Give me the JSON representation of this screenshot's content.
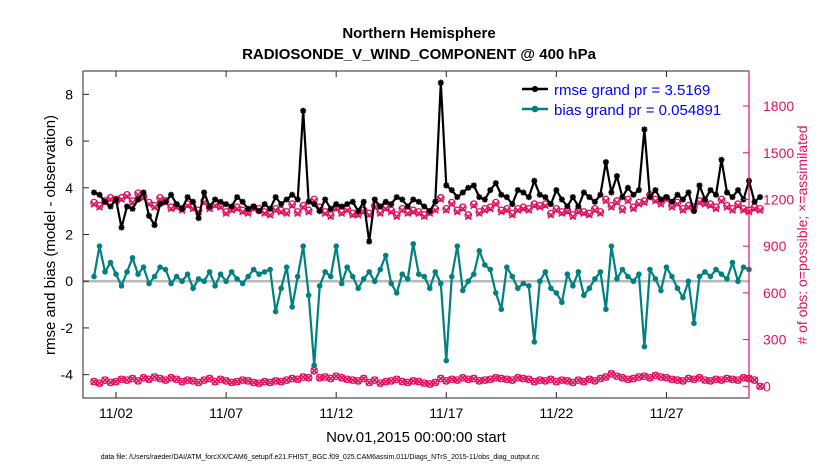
{
  "chart_data": {
    "type": "line",
    "title": "Northern Hemisphere",
    "subtitle": "RADIOSONDE_V_WIND_COMPONENT @ 400 hPa",
    "xlabel": "Nov.01,2015 00:00:00 start",
    "ylabel": "rmse and bias (model - observation)",
    "y2label": "# of obs: o=possible; ×=assimilated",
    "footnote": "data file: /Users/raeder/DAI/ATM_forcXX/CAM6_setup/f.e21.FHIST_BGC.f09_025.CAM6assim.011/Diags_NTrS_2015-11/obs_diag_output.nc",
    "xlim": [
      0.5,
      30.75
    ],
    "ylim": [
      -5,
      9
    ],
    "y2lim": [
      -75,
      2025
    ],
    "xticks": [
      {
        "day": 2,
        "label": "11/02"
      },
      {
        "day": 7,
        "label": "11/07"
      },
      {
        "day": 12,
        "label": "11/12"
      },
      {
        "day": 17,
        "label": "11/17"
      },
      {
        "day": 22,
        "label": "11/22"
      },
      {
        "day": 27,
        "label": "11/27"
      }
    ],
    "yticks": [
      -4,
      -2,
      0,
      2,
      4,
      6,
      8
    ],
    "y2ticks": [
      0,
      300,
      600,
      900,
      1200,
      1500,
      1800
    ],
    "legend_position": "top-right",
    "colors": {
      "rmse": "#000000",
      "bias": "#008080",
      "obs": "#e0115f",
      "zero": "#bbbbbb",
      "legend_text": "#0000ff"
    },
    "series": [
      {
        "key": "rmse",
        "name": "rmse grand pr = 3.5169",
        "axis": "left",
        "values": [
          3.8,
          3.7,
          3.4,
          3.2,
          3.5,
          2.3,
          3.2,
          3.1,
          3.5,
          3.8,
          2.8,
          2.4,
          3.3,
          3.4,
          3.7,
          3.3,
          3.1,
          3.6,
          3.4,
          2.7,
          3.8,
          3.2,
          3.5,
          3.4,
          3.3,
          3.2,
          3.6,
          3.4,
          3.1,
          3.2,
          3.0,
          3.3,
          3.1,
          3.6,
          3.3,
          3.5,
          3.7,
          3.5,
          7.3,
          3.4,
          3.3,
          3.0,
          3.5,
          3.1,
          3.3,
          3.2,
          3.3,
          3.4,
          3.0,
          3.4,
          1.7,
          3.5,
          3.2,
          3.4,
          3.3,
          3.6,
          3.5,
          3.2,
          3.5,
          3.4,
          3.2,
          3.0,
          3.4,
          8.5,
          4.1,
          3.9,
          3.6,
          3.8,
          4.0,
          4.1,
          3.6,
          3.5,
          3.9,
          4.2,
          3.7,
          3.6,
          3.3,
          3.9,
          3.8,
          3.6,
          4.3,
          3.7,
          3.6,
          3.3,
          3.9,
          3.5,
          3.2,
          3.6,
          3.2,
          3.8,
          3.6,
          3.4,
          3.7,
          5.1,
          3.8,
          4.5,
          3.6,
          4.0,
          3.7,
          3.9,
          6.5,
          3.6,
          3.9,
          3.5,
          3.6,
          3.4,
          3.7,
          3.5,
          3.8,
          3.0,
          4.1,
          3.5,
          3.9,
          3.7,
          5.2,
          3.8,
          3.6,
          3.9,
          3.5,
          4.3,
          3.4,
          3.6
        ]
      },
      {
        "key": "bias",
        "name": "bias grand pr = 0.054891",
        "axis": "left",
        "values": [
          0.2,
          1.5,
          0.4,
          0.8,
          0.3,
          -0.2,
          0.4,
          1.0,
          0.3,
          0.6,
          -0.1,
          0.2,
          0.6,
          0.5,
          -0.1,
          0.2,
          0.0,
          0.3,
          -0.3,
          0.1,
          0.0,
          0.4,
          -0.2,
          0.3,
          0.0,
          0.4,
          0.1,
          -0.1,
          0.2,
          0.5,
          0.3,
          0.4,
          0.5,
          -1.3,
          -0.3,
          0.6,
          -1.1,
          0.2,
          1.5,
          -0.6,
          -3.6,
          -0.2,
          0.4,
          0.2,
          1.5,
          -0.1,
          0.6,
          0.2,
          -0.3,
          0.1,
          0.4,
          0.0,
          0.5,
          1.1,
          -0.1,
          -0.5,
          0.3,
          0.1,
          1.6,
          0.3,
          0.2,
          -0.3,
          0.4,
          -0.1,
          -3.4,
          0.2,
          1.5,
          -0.4,
          0.0,
          0.3,
          1.3,
          0.7,
          0.5,
          -0.5,
          -1.2,
          0.6,
          0.2,
          -0.3,
          -0.1,
          -0.2,
          -2.6,
          0.0,
          0.4,
          -0.3,
          -0.5,
          -0.9,
          0.3,
          -0.2,
          0.4,
          -0.6,
          -0.3,
          0.1,
          0.4,
          -1.2,
          1.5,
          0.1,
          0.5,
          0.2,
          0.0,
          0.3,
          -2.8,
          0.5,
          0.1,
          -0.4,
          0.6,
          0.2,
          -0.3,
          -0.7,
          0.0,
          -1.8,
          0.2,
          0.4,
          0.2,
          0.5,
          0.3,
          0.1,
          0.8,
          0.0,
          0.6,
          0.5
        ]
      },
      {
        "key": "possible",
        "name": "possible",
        "axis": "right",
        "marker": "o",
        "values": [
          1180,
          1160,
          1190,
          1210,
          1200,
          1210,
          1230,
          1190,
          1240,
          1220,
          1180,
          1160,
          1210,
          1190,
          1150,
          1160,
          1140,
          1170,
          1150,
          1130,
          1190,
          1150,
          1170,
          1160,
          1120,
          1140,
          1150,
          1130,
          1120,
          1150,
          1140,
          1120,
          1110,
          1140,
          1130,
          1120,
          1170,
          1120,
          1160,
          1130,
          1200,
          1150,
          1120,
          1100,
          1150,
          1120,
          1140,
          1110,
          1110,
          1130,
          1110,
          1160,
          1120,
          1150,
          1130,
          1100,
          1140,
          1120,
          1130,
          1120,
          1100,
          1120,
          1140,
          1210,
          1140,
          1180,
          1130,
          1150,
          1100,
          1170,
          1120,
          1140,
          1150,
          1180,
          1130,
          1140,
          1110,
          1140,
          1150,
          1140,
          1170,
          1160,
          1170,
          1110,
          1140,
          1120,
          1130,
          1100,
          1130,
          1120,
          1110,
          1140,
          1120,
          1200,
          1160,
          1190,
          1140,
          1200,
          1150,
          1180,
          1190,
          1230,
          1200,
          1180,
          1210,
          1160,
          1180,
          1140,
          1160,
          1150,
          1190,
          1180,
          1170,
          1150,
          1200,
          1160,
          1140,
          1170,
          1140,
          1130,
          1150,
          1140
        ]
      },
      {
        "key": "assimilated",
        "name": "assimilated",
        "axis": "right",
        "marker": "x",
        "values": [
          1170,
          1150,
          1180,
          1200,
          1190,
          1200,
          1220,
          1180,
          1230,
          1210,
          1170,
          1150,
          1200,
          1180,
          1140,
          1150,
          1130,
          1160,
          1140,
          1120,
          1180,
          1140,
          1160,
          1150,
          1110,
          1130,
          1140,
          1120,
          1110,
          1140,
          1130,
          1110,
          1100,
          1130,
          1120,
          1110,
          1160,
          1110,
          1150,
          1120,
          1190,
          1140,
          1110,
          1090,
          1140,
          1110,
          1130,
          1100,
          1100,
          1120,
          1100,
          1150,
          1110,
          1140,
          1120,
          1090,
          1130,
          1110,
          1120,
          1110,
          1090,
          1110,
          1130,
          1200,
          1130,
          1170,
          1120,
          1140,
          1090,
          1160,
          1110,
          1130,
          1140,
          1170,
          1120,
          1130,
          1100,
          1130,
          1140,
          1130,
          1160,
          1150,
          1160,
          1100,
          1130,
          1110,
          1120,
          1090,
          1120,
          1110,
          1100,
          1130,
          1110,
          1190,
          1150,
          1180,
          1130,
          1190,
          1140,
          1170,
          1180,
          1220,
          1190,
          1170,
          1200,
          1150,
          1170,
          1130,
          1150,
          1140,
          1180,
          1170,
          1160,
          1140,
          1190,
          1150,
          1130,
          1160,
          1130,
          1120,
          1140,
          1130
        ]
      },
      {
        "key": "possible_low",
        "name": "possible",
        "axis": "right",
        "marker": "o",
        "values": [
          30,
          20,
          40,
          25,
          30,
          45,
          40,
          50,
          35,
          55,
          45,
          60,
          50,
          40,
          55,
          45,
          30,
          40,
          35,
          25,
          40,
          50,
          30,
          45,
          35,
          25,
          30,
          40,
          35,
          25,
          20,
          30,
          25,
          35,
          30,
          40,
          50,
          45,
          60,
          55,
          100,
          55,
          60,
          50,
          65,
          55,
          45,
          40,
          35,
          50,
          25,
          40,
          20,
          30,
          35,
          45,
          30,
          25,
          35,
          30,
          20,
          15,
          25,
          50,
          35,
          45,
          40,
          55,
          45,
          50,
          35,
          40,
          45,
          55,
          50,
          45,
          40,
          55,
          50,
          45,
          30,
          40,
          35,
          45,
          30,
          40,
          35,
          25,
          40,
          30,
          45,
          35,
          50,
          60,
          80,
          65,
          55,
          45,
          50,
          60,
          65,
          55,
          70,
          60,
          55,
          45,
          40,
          35,
          50,
          45,
          55,
          40,
          35,
          45,
          40,
          50,
          45,
          40,
          55,
          50,
          40,
          0
        ]
      },
      {
        "key": "assimilated_low",
        "name": "assimilated",
        "axis": "right",
        "marker": "x",
        "values": [
          30,
          20,
          40,
          25,
          30,
          45,
          40,
          50,
          35,
          55,
          45,
          60,
          50,
          40,
          55,
          45,
          30,
          40,
          35,
          25,
          40,
          50,
          30,
          45,
          35,
          25,
          30,
          40,
          35,
          25,
          20,
          30,
          25,
          35,
          30,
          40,
          50,
          45,
          60,
          55,
          100,
          55,
          60,
          50,
          65,
          55,
          45,
          40,
          35,
          50,
          25,
          40,
          20,
          30,
          35,
          45,
          30,
          25,
          35,
          30,
          20,
          15,
          25,
          50,
          35,
          45,
          40,
          55,
          45,
          50,
          35,
          40,
          45,
          55,
          50,
          45,
          40,
          55,
          50,
          45,
          30,
          40,
          35,
          45,
          30,
          40,
          35,
          25,
          40,
          30,
          45,
          35,
          50,
          60,
          80,
          65,
          55,
          45,
          50,
          60,
          65,
          55,
          70,
          60,
          55,
          45,
          40,
          35,
          50,
          45,
          55,
          40,
          35,
          45,
          40,
          50,
          45,
          40,
          55,
          50,
          40,
          0
        ]
      }
    ]
  }
}
